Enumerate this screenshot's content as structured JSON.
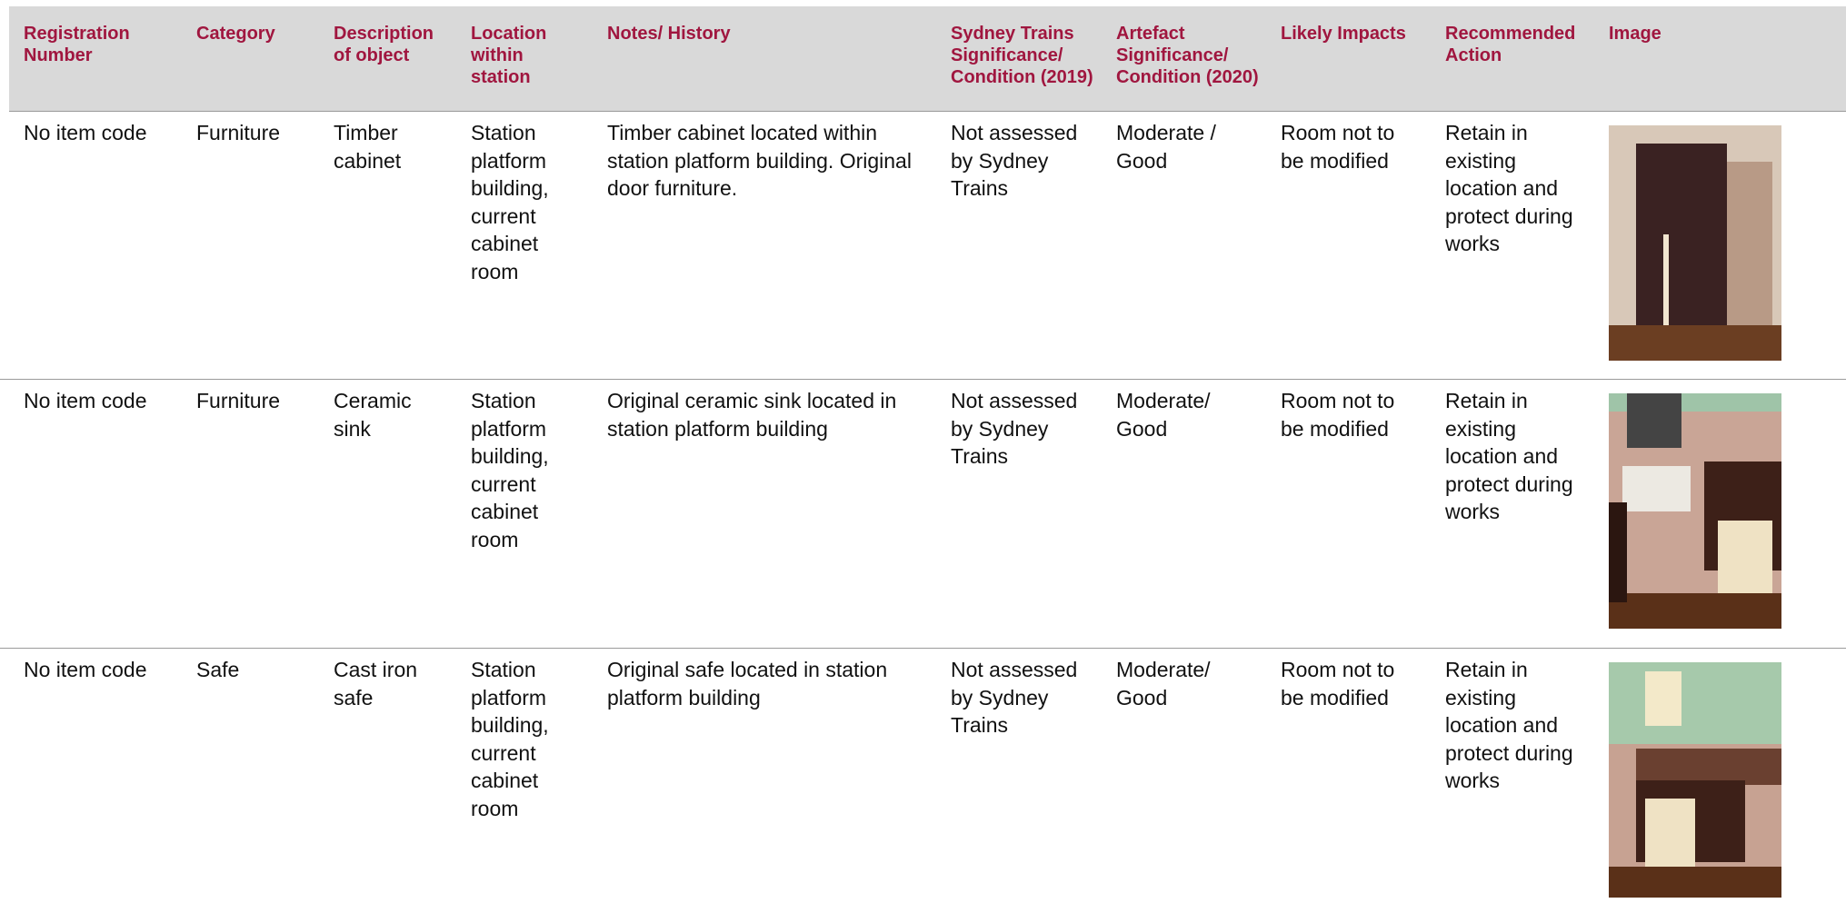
{
  "table": {
    "header": [
      "Registration Number",
      "Category",
      "Description of object",
      "Location within station",
      "Notes/ History",
      "Sydney Trains Significance/ Condition (2019)",
      "Artefact Significance/ Condition (2020)",
      "Likely Impacts",
      "Recommended Action",
      "Image"
    ],
    "rows": [
      [
        "No item code",
        "Furniture",
        "Timber cabinet",
        "Station platform building, current cabinet room",
        "Timber cabinet located within station platform building. Original door furniture.",
        "Not assessed by Sydney Trains",
        "Moderate / Good",
        "Room not to be modified",
        "Retain in existing location and protect during works"
      ],
      [
        "No item code",
        "Furniture",
        "Ceramic sink",
        "Station platform building, current cabinet room",
        "Original ceramic sink located in station platform building",
        "Not assessed by Sydney Trains",
        "Moderate/ Good",
        "Room not to be modified",
        "Retain in existing location and protect during works"
      ],
      [
        "No item code",
        "Safe",
        "Cast iron safe",
        "Station platform building, current cabinet room",
        "Original safe located in station platform building",
        "Not assessed by Sydney Trains",
        "Moderate/ Good",
        "Room not to be modified",
        "Retain in existing location and protect during works"
      ]
    ]
  }
}
